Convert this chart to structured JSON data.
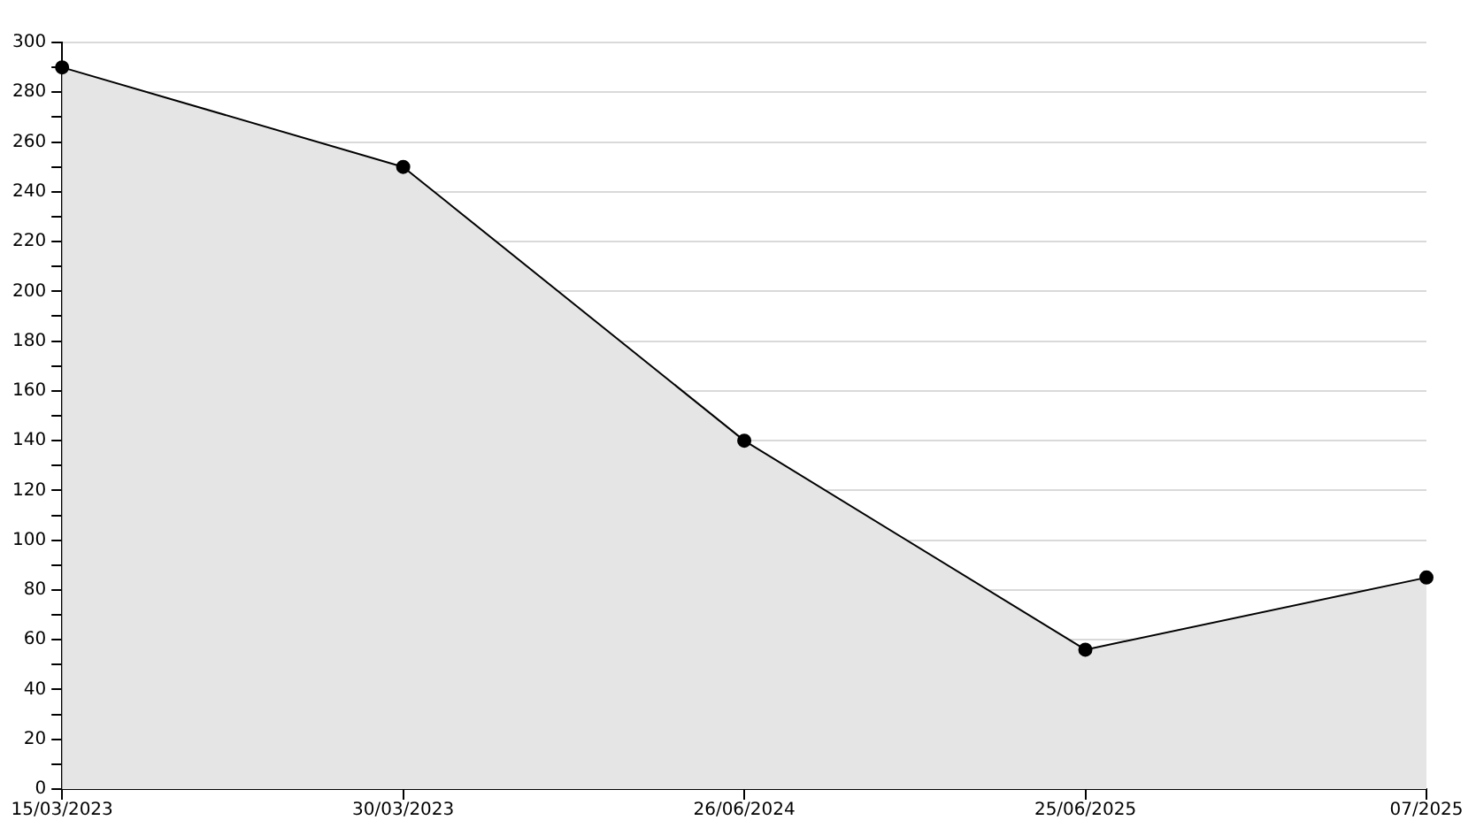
{
  "chart_data": {
    "type": "area",
    "categories": [
      "15/03/2023",
      "30/03/2023",
      "26/06/2024",
      "25/06/2025",
      "07/2025"
    ],
    "series": [
      {
        "color": "#000000",
        "values": [
          290,
          250,
          140,
          56,
          85
        ]
      }
    ],
    "ylim": [
      0,
      300
    ],
    "yticks": [
      0,
      {
        "value": 10,
        "label": null
      },
      20,
      {
        "value": 30,
        "label": null
      },
      40,
      {
        "value": 50,
        "label": null
      },
      60,
      {
        "value": 70,
        "label": null
      },
      80,
      {
        "value": 90,
        "label": null
      },
      100,
      {
        "value": 110,
        "label": null
      },
      120,
      {
        "value": 130,
        "label": null
      },
      140,
      {
        "value": 150,
        "label": null
      },
      160,
      {
        "value": 170,
        "label": null
      },
      180,
      {
        "value": 190,
        "label": null
      },
      200,
      {
        "value": 210,
        "label": null
      },
      220,
      {
        "value": 230,
        "label": null
      },
      240,
      {
        "value": 250,
        "label": null
      },
      260,
      {
        "value": 270,
        "label": null
      },
      280,
      {
        "value": 290,
        "label": null
      },
      300
    ],
    "grid": "y",
    "legend": false,
    "marker": "circle",
    "line_style": "solid"
  }
}
